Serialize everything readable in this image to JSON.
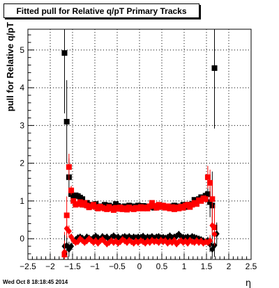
{
  "title": "Fitted pull for Relative q/pT  Primary Tracks",
  "footer": "Wed Oct  8 18:18:45 2014",
  "chart_data": {
    "type": "scatter",
    "title": "Fitted pull for Relative q/pT  Primary Tracks",
    "xlabel": "η",
    "ylabel": "pull for Relative q/pT",
    "xlim": [
      -2.5,
      2.5
    ],
    "ylim": [
      -0.55,
      5.55
    ],
    "xticks": [
      -2.5,
      -2,
      -1.5,
      -1,
      -0.5,
      0,
      0.5,
      1,
      1.5,
      2,
      2.5
    ],
    "yticks": [
      0,
      1,
      2,
      3,
      4,
      5
    ],
    "grid": true,
    "series": [
      {
        "color": "#000000",
        "marker": "square",
        "x": [
          -1.68,
          -1.63,
          -1.58,
          -1.53,
          -1.48,
          -1.43,
          -1.38,
          -1.33,
          -1.28,
          -1.23,
          -1.18,
          -1.13,
          -1.08,
          -1.03,
          -0.98,
          -0.93,
          -0.88,
          -0.83,
          -0.78,
          -0.73,
          -0.68,
          -0.63,
          -0.58,
          -0.53,
          -0.48,
          -0.43,
          -0.38,
          -0.33,
          -0.28,
          -0.23,
          -0.18,
          -0.13,
          -0.08,
          -0.03,
          0.03,
          0.08,
          0.13,
          0.18,
          0.23,
          0.28,
          0.33,
          0.38,
          0.43,
          0.48,
          0.53,
          0.58,
          0.63,
          0.68,
          0.73,
          0.78,
          0.83,
          0.88,
          0.93,
          0.98,
          1.03,
          1.08,
          1.13,
          1.18,
          1.23,
          1.28,
          1.33,
          1.38,
          1.43,
          1.48,
          1.53,
          1.58,
          1.63,
          1.68
        ],
        "y": [
          4.92,
          3.1,
          1.63,
          1.18,
          1.13,
          1.15,
          1.13,
          1.09,
          1.05,
          0.9,
          0.95,
          0.85,
          0.9,
          0.88,
          0.92,
          0.82,
          0.86,
          0.84,
          0.9,
          0.83,
          0.88,
          0.85,
          0.83,
          0.92,
          0.87,
          0.84,
          0.8,
          0.86,
          0.83,
          0.88,
          0.84,
          0.86,
          0.84,
          0.88,
          0.86,
          0.87,
          0.83,
          0.86,
          0.84,
          0.88,
          0.82,
          0.86,
          0.84,
          0.88,
          0.86,
          0.83,
          0.85,
          0.86,
          0.84,
          0.88,
          0.86,
          0.84,
          0.86,
          0.9,
          0.84,
          0.9,
          0.9,
          0.92,
          1.03,
          1.0,
          1.05,
          1.1,
          1.07,
          1.14,
          1.18,
          0.97,
          0.88,
          4.52
        ],
        "yerr": [
          1.6,
          1.1,
          0.5,
          0.15,
          0.08,
          0.06,
          0.05,
          0.05,
          0.04,
          0.04,
          0.04,
          0.04,
          0.04,
          0.04,
          0.04,
          0.04,
          0.04,
          0.04,
          0.04,
          0.04,
          0.04,
          0.04,
          0.04,
          0.04,
          0.04,
          0.04,
          0.04,
          0.04,
          0.04,
          0.04,
          0.04,
          0.04,
          0.04,
          0.04,
          0.04,
          0.04,
          0.04,
          0.04,
          0.04,
          0.04,
          0.04,
          0.04,
          0.04,
          0.04,
          0.04,
          0.04,
          0.04,
          0.04,
          0.04,
          0.04,
          0.04,
          0.04,
          0.04,
          0.04,
          0.04,
          0.04,
          0.04,
          0.04,
          0.04,
          0.05,
          0.05,
          0.06,
          0.07,
          0.1,
          0.15,
          0.4,
          0.9,
          1.6
        ]
      },
      {
        "color": "#ff0000",
        "marker": "square",
        "x": [
          -1.68,
          -1.63,
          -1.58,
          -1.53,
          -1.48,
          -1.43,
          -1.38,
          -1.33,
          -1.28,
          -1.23,
          -1.18,
          -1.13,
          -1.08,
          -1.03,
          -0.98,
          -0.93,
          -0.88,
          -0.83,
          -0.78,
          -0.73,
          -0.68,
          -0.63,
          -0.58,
          -0.53,
          -0.48,
          -0.43,
          -0.38,
          -0.33,
          -0.28,
          -0.23,
          -0.18,
          -0.13,
          -0.08,
          -0.03,
          0.03,
          0.08,
          0.13,
          0.18,
          0.23,
          0.28,
          0.33,
          0.38,
          0.43,
          0.48,
          0.53,
          0.58,
          0.63,
          0.68,
          0.73,
          0.78,
          0.83,
          0.88,
          0.93,
          0.98,
          1.03,
          1.08,
          1.13,
          1.18,
          1.23,
          1.28,
          1.33,
          1.38,
          1.43,
          1.48,
          1.53,
          1.58,
          1.63,
          1.68
        ],
        "y": [
          -0.42,
          0.62,
          1.9,
          1.28,
          1.0,
          0.9,
          0.92,
          0.97,
          0.9,
          0.95,
          0.88,
          0.83,
          0.86,
          0.9,
          0.84,
          0.8,
          0.85,
          0.82,
          0.8,
          0.78,
          0.84,
          0.8,
          0.76,
          0.82,
          0.79,
          0.83,
          0.78,
          0.81,
          0.77,
          0.83,
          0.8,
          0.78,
          0.82,
          0.8,
          0.84,
          0.8,
          0.83,
          0.8,
          0.86,
          0.95,
          0.87,
          0.82,
          0.9,
          0.84,
          0.88,
          0.82,
          0.86,
          0.8,
          0.84,
          0.78,
          0.83,
          0.8,
          0.85,
          0.82,
          0.88,
          0.9,
          0.84,
          0.9,
          0.95,
          0.92,
          1.02,
          1.0,
          1.07,
          1.05,
          1.63,
          1.48,
          1.05,
          0.3
        ],
        "yerr": [
          0.6,
          0.5,
          0.35,
          0.12,
          0.06,
          0.05,
          0.05,
          0.04,
          0.04,
          0.04,
          0.04,
          0.04,
          0.04,
          0.04,
          0.04,
          0.04,
          0.04,
          0.04,
          0.04,
          0.04,
          0.04,
          0.04,
          0.04,
          0.04,
          0.04,
          0.04,
          0.04,
          0.04,
          0.04,
          0.04,
          0.04,
          0.04,
          0.04,
          0.04,
          0.04,
          0.04,
          0.04,
          0.04,
          0.04,
          0.04,
          0.04,
          0.04,
          0.04,
          0.04,
          0.04,
          0.04,
          0.04,
          0.04,
          0.04,
          0.04,
          0.04,
          0.04,
          0.04,
          0.04,
          0.04,
          0.04,
          0.04,
          0.04,
          0.04,
          0.04,
          0.05,
          0.06,
          0.07,
          0.1,
          0.3,
          0.35,
          0.5,
          0.6
        ]
      },
      {
        "color": "#000000",
        "marker": "diamond",
        "x": [
          -1.68,
          -1.63,
          -1.58,
          -1.53,
          -1.48,
          -1.43,
          -1.38,
          -1.33,
          -1.28,
          -1.23,
          -1.18,
          -1.13,
          -1.08,
          -1.03,
          -0.98,
          -0.93,
          -0.88,
          -0.83,
          -0.78,
          -0.73,
          -0.68,
          -0.63,
          -0.58,
          -0.53,
          -0.48,
          -0.43,
          -0.38,
          -0.33,
          -0.28,
          -0.23,
          -0.18,
          -0.13,
          -0.08,
          -0.03,
          0.03,
          0.08,
          0.13,
          0.18,
          0.23,
          0.28,
          0.33,
          0.38,
          0.43,
          0.48,
          0.53,
          0.58,
          0.63,
          0.68,
          0.73,
          0.78,
          0.83,
          0.88,
          0.93,
          0.98,
          1.03,
          1.08,
          1.13,
          1.18,
          1.23,
          1.28,
          1.33,
          1.38,
          1.43,
          1.48,
          1.53,
          1.58,
          1.63,
          1.68,
          1.73
        ],
        "y": [
          -0.2,
          -0.18,
          -0.28,
          -0.2,
          -0.05,
          -0.02,
          0.03,
          0.05,
          0.02,
          -0.02,
          0.05,
          0.02,
          -0.02,
          0.03,
          0.07,
          0.03,
          -0.01,
          0.06,
          0.02,
          0.05,
          -0.02,
          0.04,
          0.08,
          0.03,
          0.05,
          0.0,
          0.04,
          0.06,
          0.03,
          0.06,
          0.02,
          0.05,
          0.03,
          0.05,
          0.04,
          0.07,
          0.02,
          0.05,
          0.03,
          0.06,
          0.02,
          0.05,
          0.06,
          0.03,
          0.04,
          0.02,
          0.04,
          0.08,
          0.03,
          0.05,
          0.07,
          0.12,
          0.06,
          0.04,
          0.03,
          0.05,
          0.02,
          0.06,
          0.04,
          0.02,
          0.0,
          -0.02,
          -0.05,
          -0.08,
          -0.05,
          -0.15,
          -0.28,
          -0.18,
          0.13
        ],
        "yerr": [
          0.3,
          0.25,
          0.2,
          0.1,
          0.05,
          0.04,
          0.03,
          0.03,
          0.03,
          0.03,
          0.03,
          0.03,
          0.03,
          0.03,
          0.03,
          0.03,
          0.03,
          0.03,
          0.03,
          0.03,
          0.03,
          0.03,
          0.03,
          0.03,
          0.03,
          0.03,
          0.03,
          0.03,
          0.03,
          0.03,
          0.03,
          0.03,
          0.03,
          0.03,
          0.03,
          0.03,
          0.03,
          0.03,
          0.03,
          0.03,
          0.03,
          0.03,
          0.03,
          0.03,
          0.03,
          0.03,
          0.03,
          0.03,
          0.03,
          0.03,
          0.03,
          0.03,
          0.03,
          0.03,
          0.03,
          0.03,
          0.03,
          0.03,
          0.03,
          0.03,
          0.03,
          0.04,
          0.05,
          0.06,
          0.1,
          0.2,
          0.25,
          0.3,
          0.3
        ]
      },
      {
        "color": "#ff0000",
        "marker": "diamond",
        "x": [
          -1.68,
          -1.63,
          -1.58,
          -1.53,
          -1.48,
          -1.43,
          -1.38,
          -1.33,
          -1.28,
          -1.23,
          -1.18,
          -1.13,
          -1.08,
          -1.03,
          -0.98,
          -0.93,
          -0.88,
          -0.83,
          -0.78,
          -0.73,
          -0.68,
          -0.63,
          -0.58,
          -0.53,
          -0.48,
          -0.43,
          -0.38,
          -0.33,
          -0.28,
          -0.23,
          -0.18,
          -0.13,
          -0.08,
          -0.03,
          0.03,
          0.08,
          0.13,
          0.18,
          0.23,
          0.28,
          0.33,
          0.38,
          0.43,
          0.48,
          0.53,
          0.58,
          0.63,
          0.68,
          0.73,
          0.78,
          0.83,
          0.88,
          0.93,
          0.98,
          1.03,
          1.08,
          1.13,
          1.18,
          1.23,
          1.28,
          1.33,
          1.38,
          1.43,
          1.48,
          1.53,
          1.58,
          1.63,
          1.68
        ],
        "y": [
          -0.35,
          0.27,
          0.2,
          0.05,
          -0.05,
          -0.1,
          -0.08,
          0.0,
          -0.05,
          -0.1,
          -0.06,
          0.0,
          -0.05,
          -0.1,
          -0.05,
          -0.12,
          -0.06,
          -0.02,
          -0.08,
          -0.14,
          -0.1,
          -0.05,
          -0.1,
          -0.06,
          -0.12,
          -0.08,
          -0.02,
          -0.06,
          -0.1,
          -0.04,
          -0.08,
          -0.12,
          -0.06,
          -0.1,
          -0.05,
          -0.08,
          -0.12,
          -0.06,
          -0.1,
          -0.04,
          -0.08,
          -0.06,
          -0.1,
          -0.04,
          -0.08,
          -0.05,
          -0.12,
          -0.07,
          -0.1,
          -0.04,
          -0.14,
          -0.08,
          -0.05,
          -0.1,
          -0.06,
          -0.12,
          -0.04,
          -0.08,
          -0.1,
          -0.05,
          -0.1,
          -0.06,
          -0.12,
          -0.08,
          -0.1,
          -0.05,
          0.35,
          0.12
        ],
        "yerr": [
          0.3,
          0.25,
          0.15,
          0.08,
          0.04,
          0.03,
          0.03,
          0.03,
          0.03,
          0.03,
          0.03,
          0.03,
          0.03,
          0.03,
          0.03,
          0.03,
          0.03,
          0.03,
          0.03,
          0.03,
          0.03,
          0.03,
          0.03,
          0.03,
          0.03,
          0.03,
          0.03,
          0.03,
          0.03,
          0.03,
          0.03,
          0.03,
          0.03,
          0.03,
          0.03,
          0.03,
          0.03,
          0.03,
          0.03,
          0.03,
          0.03,
          0.03,
          0.03,
          0.03,
          0.03,
          0.03,
          0.03,
          0.03,
          0.03,
          0.03,
          0.03,
          0.03,
          0.03,
          0.03,
          0.03,
          0.03,
          0.03,
          0.03,
          0.03,
          0.03,
          0.03,
          0.03,
          0.04,
          0.05,
          0.08,
          0.15,
          0.25,
          0.3
        ]
      }
    ]
  }
}
